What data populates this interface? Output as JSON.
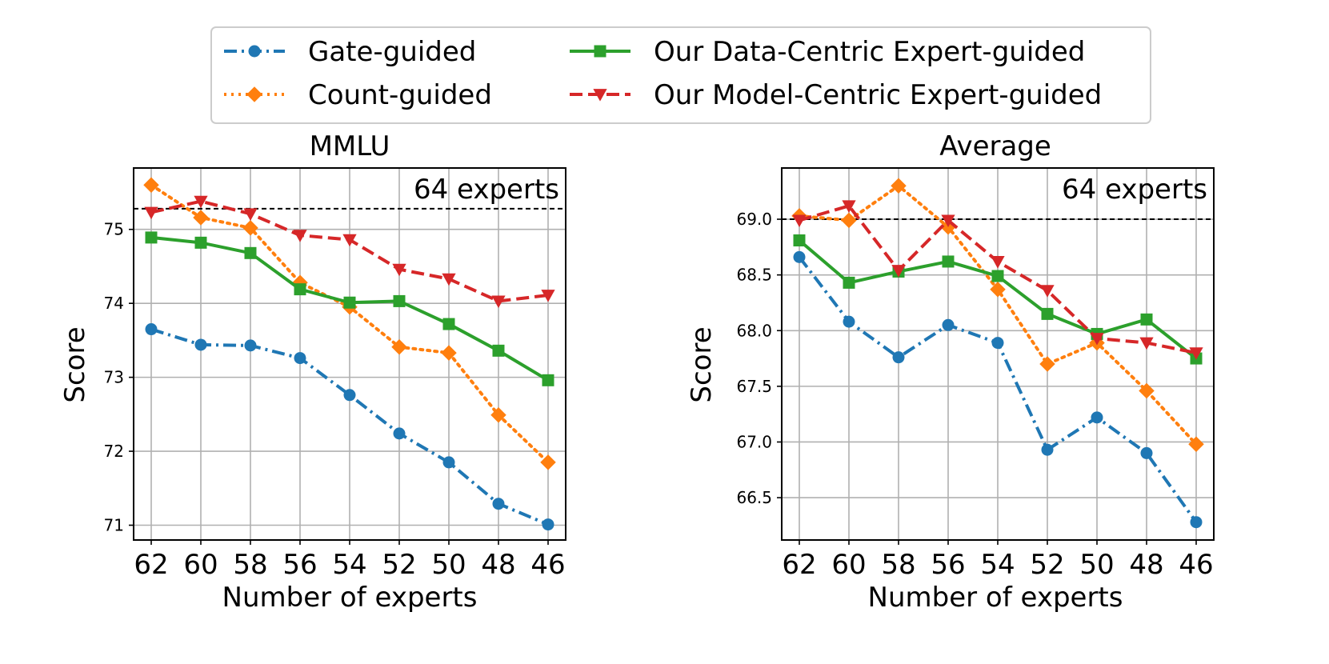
{
  "chart_data": [
    {
      "type": "line",
      "title": "MMLU",
      "xlabel": "Number of experts",
      "ylabel": "Score",
      "categories": [
        "62",
        "60",
        "58",
        "56",
        "54",
        "52",
        "50",
        "48",
        "46"
      ],
      "ylim": [
        70.8,
        75.83
      ],
      "yticks": [
        "71",
        "72",
        "73",
        "74",
        "75"
      ],
      "grid": true,
      "reference": {
        "value": 75.28,
        "label": "64 experts"
      },
      "series": [
        {
          "name": "Gate-guided",
          "values": [
            73.65,
            73.44,
            73.43,
            73.26,
            72.76,
            72.24,
            71.85,
            71.29,
            71.01
          ]
        },
        {
          "name": "Count-guided",
          "values": [
            75.6,
            75.16,
            75.02,
            74.28,
            73.95,
            73.41,
            73.33,
            72.49,
            71.85
          ]
        },
        {
          "name": "Our Data-Centric Expert-guided",
          "values": [
            74.89,
            74.82,
            74.68,
            74.19,
            74.01,
            74.03,
            73.72,
            73.36,
            72.96
          ]
        },
        {
          "name": "Our Model-Centric Expert-guided",
          "values": [
            75.23,
            75.38,
            75.21,
            74.92,
            74.86,
            74.46,
            74.33,
            74.03,
            74.11
          ]
        }
      ]
    },
    {
      "type": "line",
      "title": "Average",
      "xlabel": "Number of experts",
      "ylabel": "Score",
      "categories": [
        "62",
        "60",
        "58",
        "56",
        "54",
        "52",
        "50",
        "48",
        "46"
      ],
      "ylim": [
        66.12,
        69.46
      ],
      "yticks": [
        "66.5",
        "67.0",
        "67.5",
        "68.0",
        "68.5",
        "69.0"
      ],
      "grid": true,
      "reference": {
        "value": 69.0,
        "label": "64 experts"
      },
      "series": [
        {
          "name": "Gate-guided",
          "values": [
            68.66,
            68.08,
            67.76,
            68.05,
            67.89,
            66.93,
            67.22,
            66.9,
            66.28
          ]
        },
        {
          "name": "Count-guided",
          "values": [
            69.03,
            68.99,
            69.3,
            68.93,
            68.37,
            67.7,
            67.89,
            67.46,
            66.98
          ]
        },
        {
          "name": "Our Data-Centric Expert-guided",
          "values": [
            68.81,
            68.43,
            68.53,
            68.62,
            68.49,
            68.15,
            67.97,
            68.1,
            67.75
          ]
        },
        {
          "name": "Our Model-Centric Expert-guided",
          "values": [
            68.99,
            69.12,
            68.54,
            68.99,
            68.62,
            68.36,
            67.93,
            67.89,
            67.8
          ]
        }
      ]
    }
  ],
  "legend": {
    "placement": "top-center",
    "entries": [
      "Gate-guided",
      "Count-guided",
      "Our Data-Centric Expert-guided",
      "Our Model-Centric Expert-guided"
    ]
  },
  "style": {
    "colors": [
      "#1f77b4",
      "#ff7f0e",
      "#2ca02c",
      "#d62728"
    ],
    "markers": [
      "circle",
      "diamond",
      "square",
      "triangle-down"
    ],
    "dashes": [
      "dashdot",
      "dotted",
      "solid",
      "dashed"
    ],
    "grid_color": "#b0b0b0",
    "reference_color": "#000000"
  }
}
